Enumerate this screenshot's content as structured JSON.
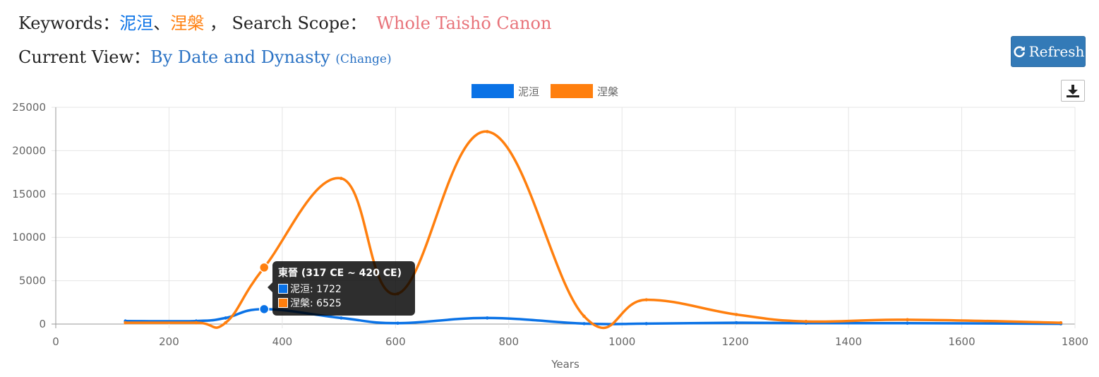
{
  "header": {
    "keywords_label": "Keywords：",
    "keyword1": "泥洹",
    "separator": "、",
    "keyword2": "涅槃",
    "comma": "，",
    "scope_label": "Search Scope：",
    "scope_value": "Whole Taishō Canon",
    "view_label": "Current View：",
    "view_value": "By Date and Dynasty",
    "change_label": "(Change)"
  },
  "toolbar": {
    "refresh_label": "Refresh",
    "refresh_icon": "refresh-icon",
    "download_icon": "download-icon"
  },
  "colors": {
    "series1": "#0a72e6",
    "series2": "#ff7f0e",
    "accent_button": "#337ab7"
  },
  "chart_data": {
    "type": "line",
    "xlabel": "Years",
    "ylabel": "",
    "xlim": [
      0,
      1800
    ],
    "ylim": [
      0,
      25000
    ],
    "x_ticks": [
      0,
      200,
      400,
      600,
      800,
      1000,
      1200,
      1400,
      1600,
      1800
    ],
    "y_ticks": [
      0,
      5000,
      10000,
      15000,
      20000,
      25000
    ],
    "grid": true,
    "legend_position": "top",
    "series": [
      {
        "name": "泥洹",
        "color": "#0a72e6",
        "points": [
          [
            123,
            350
          ],
          [
            248,
            350
          ],
          [
            300,
            700
          ],
          [
            368,
            1722
          ],
          [
            504,
            700
          ],
          [
            604,
            100
          ],
          [
            762,
            700
          ],
          [
            933,
            50
          ],
          [
            1043,
            50
          ],
          [
            1202,
            150
          ],
          [
            1325,
            100
          ],
          [
            1504,
            100
          ],
          [
            1775,
            30
          ]
        ]
      },
      {
        "name": "涅槃",
        "color": "#ff7f0e",
        "points": [
          [
            123,
            150
          ],
          [
            248,
            150
          ],
          [
            300,
            150
          ],
          [
            368,
            6525
          ],
          [
            504,
            16800
          ],
          [
            604,
            3500
          ],
          [
            762,
            22200
          ],
          [
            933,
            900
          ],
          [
            1043,
            2800
          ],
          [
            1202,
            1100
          ],
          [
            1325,
            300
          ],
          [
            1504,
            500
          ],
          [
            1775,
            150
          ]
        ]
      }
    ],
    "tooltip": {
      "title": "東晉  (317 CE ~ 420 CE)",
      "rows": [
        "泥洹: 1722",
        "涅槃: 6525"
      ]
    }
  }
}
